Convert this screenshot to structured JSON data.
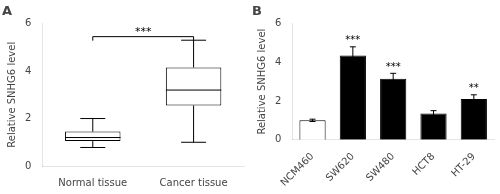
{
  "chart_data": [
    {
      "type": "box",
      "title": "A",
      "ylabel": "Relative SNHG6 level",
      "categories": [
        "Normal tissue",
        "Cancer tissue"
      ],
      "boxes": [
        {
          "median": 1.2,
          "q1": 1.05,
          "q3": 1.45,
          "whislo": 0.78,
          "whishi": 2.0
        },
        {
          "median": 3.2,
          "q1": 2.55,
          "q3": 4.15,
          "whislo": 1.0,
          "whishi": 5.3
        }
      ],
      "ylim": [
        0,
        6
      ],
      "yticks": [
        0,
        2,
        4,
        6
      ],
      "grid": false,
      "annotations": [
        {
          "text": "***",
          "y": 5.55,
          "bracket_y": 5.45,
          "from": "Normal tissue",
          "to": "Cancer tissue"
        }
      ]
    },
    {
      "type": "bar",
      "title": "B",
      "ylabel": "Relative SNHG6 level",
      "categories": [
        "NCM460",
        "SW620",
        "SW480",
        "HCT8",
        "HT-29"
      ],
      "values": [
        1.0,
        4.35,
        3.15,
        1.35,
        2.1
      ],
      "errors": [
        0.06,
        0.45,
        0.28,
        0.15,
        0.22
      ],
      "colors": [
        "white",
        "black",
        "black",
        "black",
        "black"
      ],
      "ylim": [
        0,
        6
      ],
      "yticks": [
        0,
        2,
        4,
        6
      ],
      "grid": false,
      "annotations": [
        {
          "category": "SW620",
          "text": "***"
        },
        {
          "category": "SW480",
          "text": "***"
        },
        {
          "category": "HT-29",
          "text": "**"
        }
      ]
    }
  ]
}
